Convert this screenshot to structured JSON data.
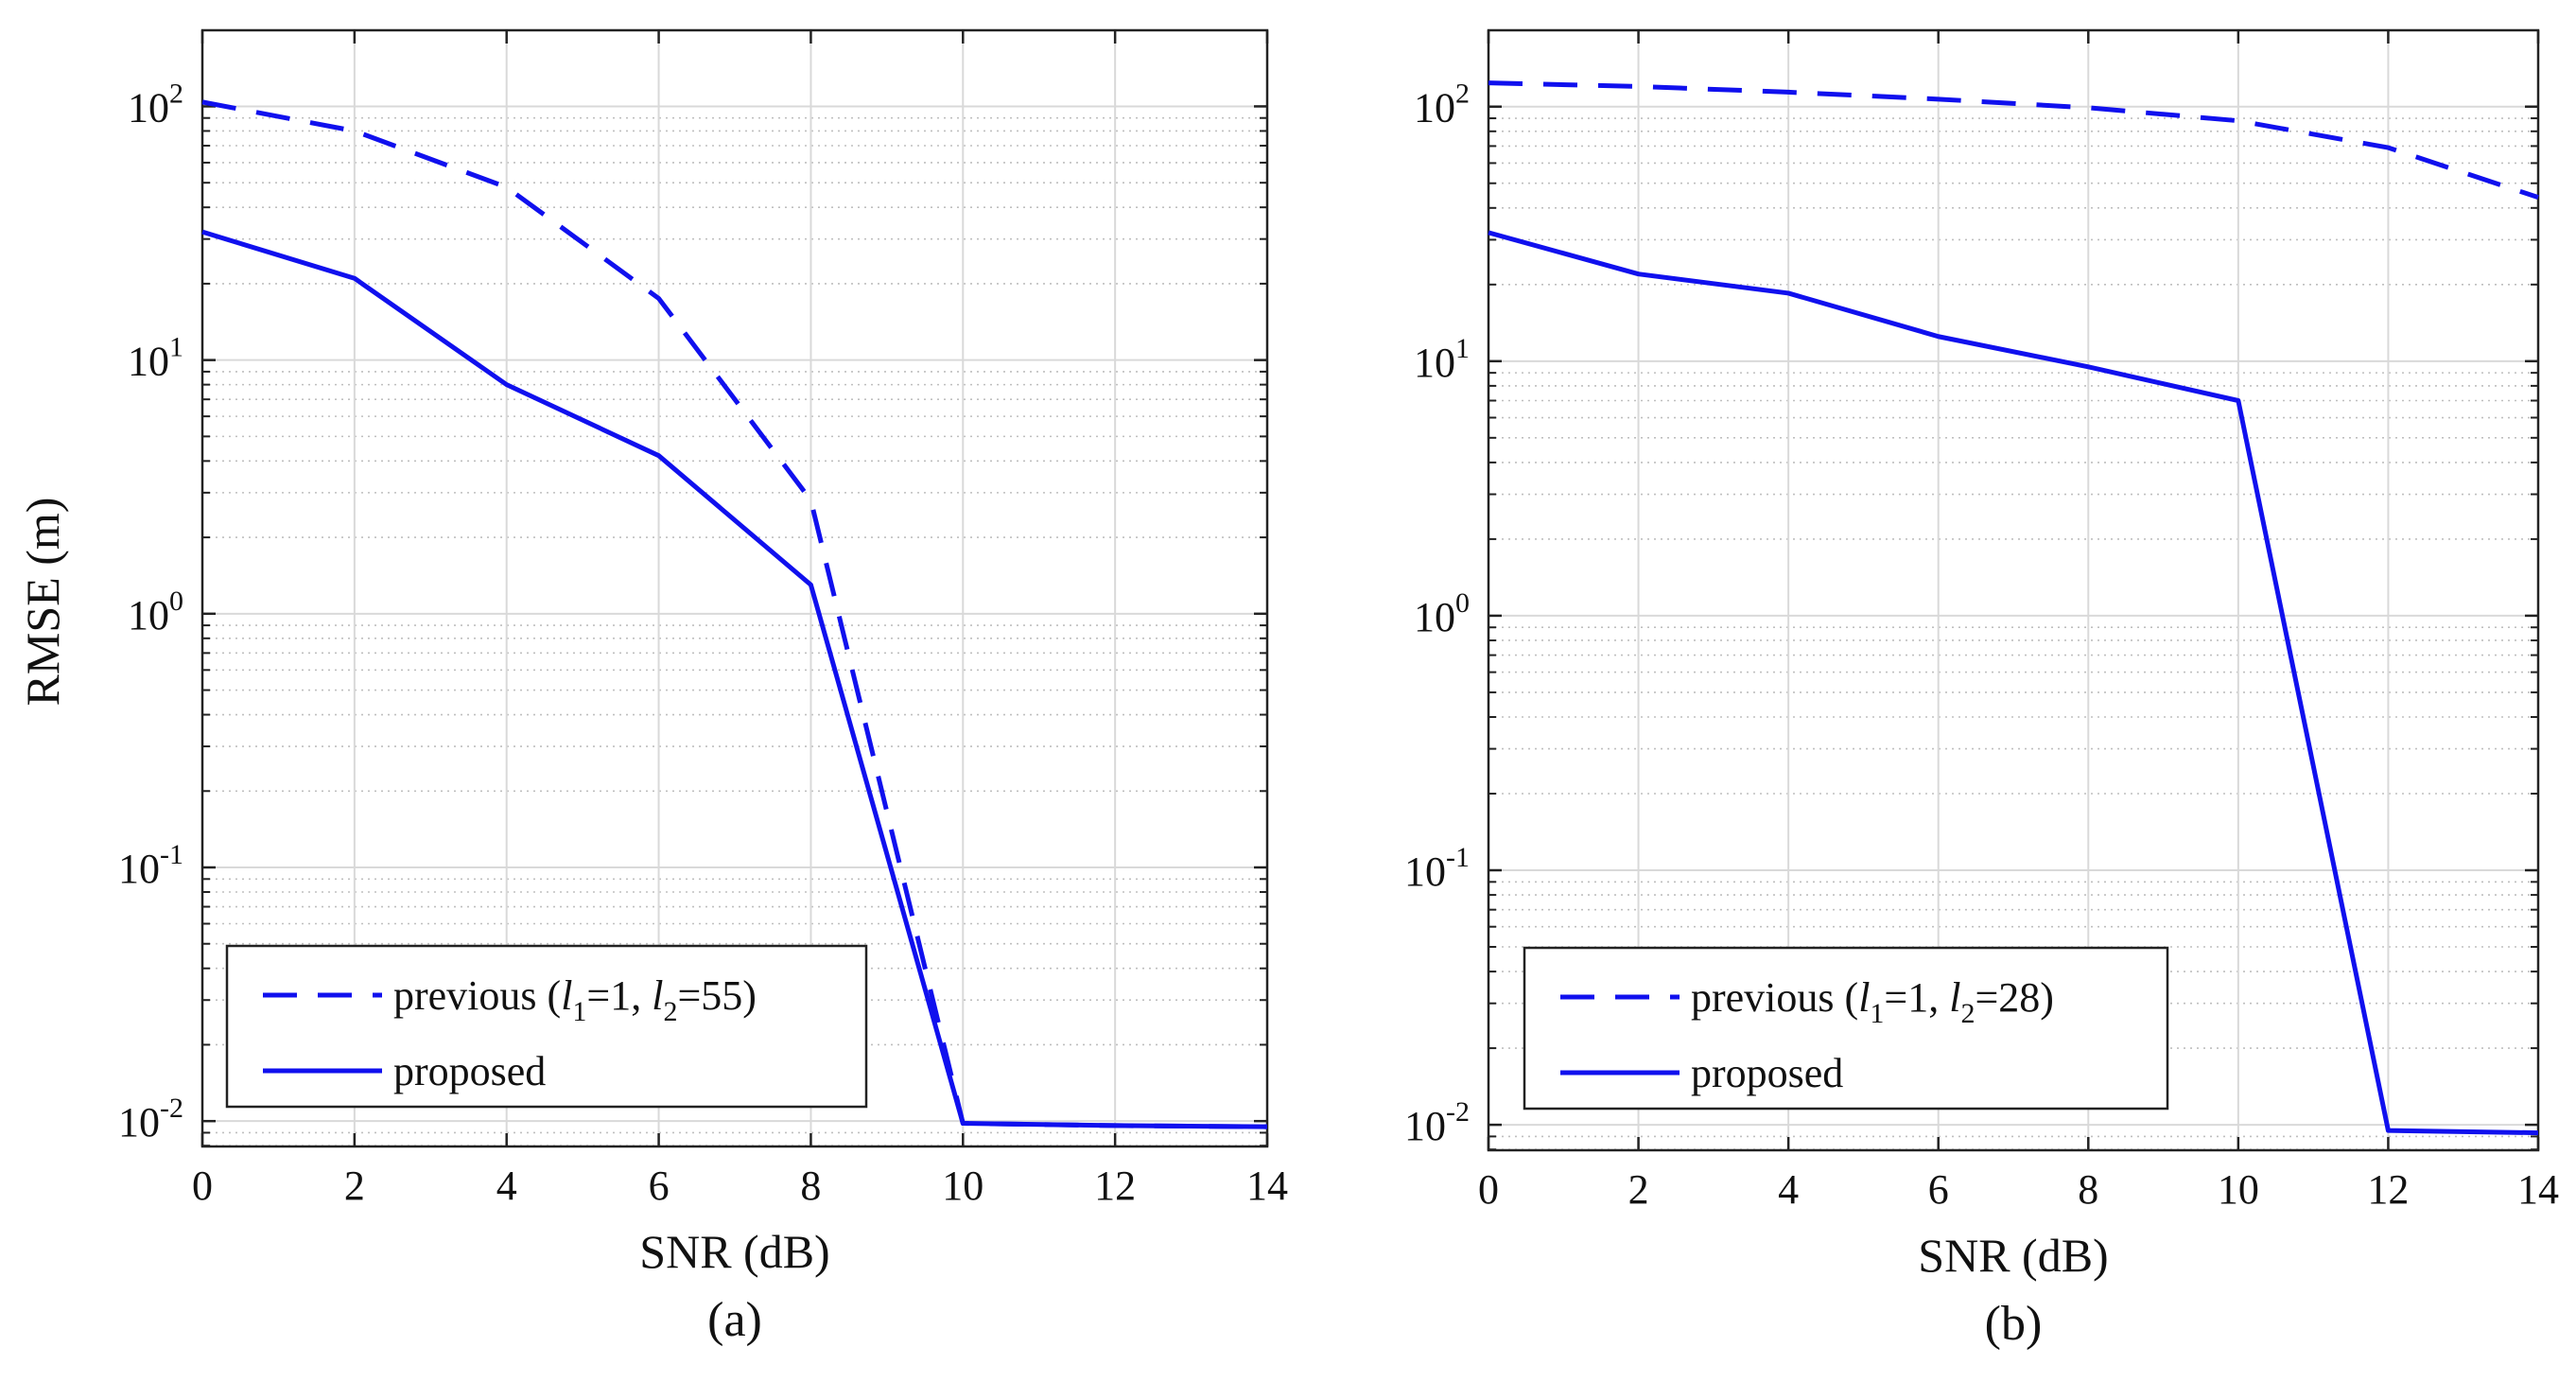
{
  "chart_data": [
    {
      "type": "line",
      "panel_label": "(a)",
      "xlabel": "SNR (dB)",
      "ylabel": "RMSE (m)",
      "xlim": [
        0,
        14
      ],
      "ylim_log10": [
        -2.1,
        2.3
      ],
      "yscale": "log",
      "grid": true,
      "legend_position": "bottom-left",
      "x_ticks": [
        "0",
        "2",
        "4",
        "6",
        "8",
        "10",
        "12",
        "14"
      ],
      "y_ticks": [
        {
          "base": "10",
          "exp": "2",
          "log10": 2
        },
        {
          "base": "10",
          "exp": "1",
          "log10": 1
        },
        {
          "base": "10",
          "exp": "0",
          "log10": 0
        },
        {
          "base": "10",
          "exp": "-1",
          "log10": -1
        },
        {
          "base": "10",
          "exp": "-2",
          "log10": -2
        }
      ],
      "series": [
        {
          "name": "previous",
          "legend": {
            "pre": "previous (",
            "l1_var": "l",
            "l1_sub": "1",
            "l1_val": "=1, ",
            "l2_var": "l",
            "l2_sub": "2",
            "l2_val": "=55)"
          },
          "style": "dashed",
          "x": [
            0,
            2,
            4,
            6,
            8,
            10,
            12,
            14
          ],
          "values": [
            104,
            80,
            48,
            17.5,
            2.8,
            0.0098,
            0.0096,
            0.0095
          ]
        },
        {
          "name": "proposed",
          "legend": {
            "pre": "proposed"
          },
          "style": "solid",
          "x": [
            0,
            2,
            4,
            6,
            8,
            10,
            12,
            14
          ],
          "values": [
            32,
            21,
            8,
            4.2,
            1.3,
            0.0098,
            0.0096,
            0.0095
          ]
        }
      ]
    },
    {
      "type": "line",
      "panel_label": "(b)",
      "xlabel": "SNR (dB)",
      "ylabel": "",
      "xlim": [
        0,
        14
      ],
      "ylim_log10": [
        -2.1,
        2.3
      ],
      "yscale": "log",
      "grid": true,
      "legend_position": "bottom-left",
      "x_ticks": [
        "0",
        "2",
        "4",
        "6",
        "8",
        "10",
        "12",
        "14"
      ],
      "y_ticks": [
        {
          "base": "10",
          "exp": "2",
          "log10": 2
        },
        {
          "base": "10",
          "exp": "1",
          "log10": 1
        },
        {
          "base": "10",
          "exp": "0",
          "log10": 0
        },
        {
          "base": "10",
          "exp": "-1",
          "log10": -1
        },
        {
          "base": "10",
          "exp": "-2",
          "log10": -2
        }
      ],
      "series": [
        {
          "name": "previous",
          "legend": {
            "pre": "previous (",
            "l1_var": "l",
            "l1_sub": "1",
            "l1_val": "=1, ",
            "l2_var": "l",
            "l2_sub": "2",
            "l2_val": "=28)"
          },
          "style": "dashed",
          "x": [
            0,
            2,
            4,
            6,
            8,
            10,
            12,
            14
          ],
          "values": [
            124,
            120,
            114,
            107,
            99,
            88,
            69,
            44
          ]
        },
        {
          "name": "proposed",
          "legend": {
            "pre": "proposed"
          },
          "style": "solid",
          "x": [
            0,
            2,
            4,
            6,
            8,
            10,
            12,
            14
          ],
          "values": [
            32,
            22,
            18.5,
            12.5,
            9.5,
            7,
            0.0095,
            0.0093
          ]
        }
      ]
    }
  ],
  "colors": {
    "series": "#1010ee",
    "axes": "#222222",
    "grid_major": "#d9d9d9",
    "grid_minor": "#bfbfbf"
  }
}
